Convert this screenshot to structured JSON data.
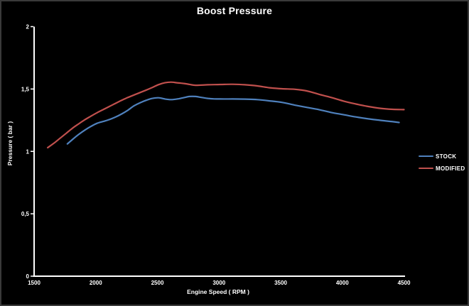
{
  "window": {
    "background": "#000000",
    "border_color": "#3a3a3a",
    "text_color": "#ffffff",
    "axis_color": "#ffffff"
  },
  "chart_data": {
    "type": "line",
    "title": "Boost Pressure",
    "xlabel": "Engine Speed ( RPM )",
    "ylabel": "Pressure ( bar )",
    "xlim": [
      1500,
      4500
    ],
    "ylim": [
      0,
      2
    ],
    "grid": false,
    "legend_position": "right",
    "x_ticks": {
      "values": [
        1500,
        2000,
        2500,
        3000,
        3500,
        4000,
        4500
      ],
      "labels": [
        "1500",
        "2000",
        "2500",
        "3000",
        "3500",
        "4000",
        "4500"
      ]
    },
    "y_ticks": {
      "values": [
        0,
        0.5,
        1,
        1.5,
        2
      ],
      "labels": [
        "0",
        "0,5",
        "1",
        "1,5",
        "2"
      ]
    },
    "series": [
      {
        "name": "STOCK",
        "color": "#4F81BD",
        "points": [
          [
            1770,
            1.06
          ],
          [
            1810,
            1.095
          ],
          [
            1860,
            1.135
          ],
          [
            1910,
            1.17
          ],
          [
            1960,
            1.2
          ],
          [
            2010,
            1.225
          ],
          [
            2060,
            1.24
          ],
          [
            2110,
            1.255
          ],
          [
            2160,
            1.275
          ],
          [
            2210,
            1.3
          ],
          [
            2260,
            1.33
          ],
          [
            2310,
            1.365
          ],
          [
            2360,
            1.39
          ],
          [
            2410,
            1.41
          ],
          [
            2460,
            1.425
          ],
          [
            2510,
            1.43
          ],
          [
            2560,
            1.42
          ],
          [
            2610,
            1.415
          ],
          [
            2660,
            1.42
          ],
          [
            2710,
            1.43
          ],
          [
            2760,
            1.44
          ],
          [
            2810,
            1.44
          ],
          [
            2860,
            1.432
          ],
          [
            2910,
            1.425
          ],
          [
            2960,
            1.421
          ],
          [
            3010,
            1.42
          ],
          [
            3110,
            1.42
          ],
          [
            3210,
            1.419
          ],
          [
            3310,
            1.415
          ],
          [
            3410,
            1.405
          ],
          [
            3510,
            1.393
          ],
          [
            3610,
            1.372
          ],
          [
            3710,
            1.353
          ],
          [
            3810,
            1.335
          ],
          [
            3910,
            1.312
          ],
          [
            4010,
            1.294
          ],
          [
            4110,
            1.276
          ],
          [
            4210,
            1.261
          ],
          [
            4310,
            1.249
          ],
          [
            4410,
            1.238
          ],
          [
            4460,
            1.232
          ]
        ]
      },
      {
        "name": "MODIFIED",
        "color": "#C0504D",
        "points": [
          [
            1610,
            1.03
          ],
          [
            1660,
            1.065
          ],
          [
            1710,
            1.105
          ],
          [
            1760,
            1.145
          ],
          [
            1810,
            1.185
          ],
          [
            1860,
            1.22
          ],
          [
            1910,
            1.253
          ],
          [
            1960,
            1.282
          ],
          [
            2010,
            1.31
          ],
          [
            2060,
            1.335
          ],
          [
            2110,
            1.36
          ],
          [
            2160,
            1.385
          ],
          [
            2210,
            1.41
          ],
          [
            2260,
            1.432
          ],
          [
            2310,
            1.452
          ],
          [
            2360,
            1.472
          ],
          [
            2410,
            1.492
          ],
          [
            2460,
            1.513
          ],
          [
            2510,
            1.535
          ],
          [
            2560,
            1.55
          ],
          [
            2610,
            1.555
          ],
          [
            2660,
            1.55
          ],
          [
            2710,
            1.545
          ],
          [
            2760,
            1.537
          ],
          [
            2810,
            1.53
          ],
          [
            2910,
            1.534
          ],
          [
            3010,
            1.536
          ],
          [
            3110,
            1.538
          ],
          [
            3210,
            1.534
          ],
          [
            3310,
            1.525
          ],
          [
            3410,
            1.51
          ],
          [
            3510,
            1.502
          ],
          [
            3610,
            1.498
          ],
          [
            3710,
            1.485
          ],
          [
            3810,
            1.458
          ],
          [
            3910,
            1.432
          ],
          [
            4010,
            1.403
          ],
          [
            4110,
            1.38
          ],
          [
            4210,
            1.36
          ],
          [
            4310,
            1.345
          ],
          [
            4410,
            1.337
          ],
          [
            4500,
            1.335
          ]
        ]
      }
    ]
  }
}
